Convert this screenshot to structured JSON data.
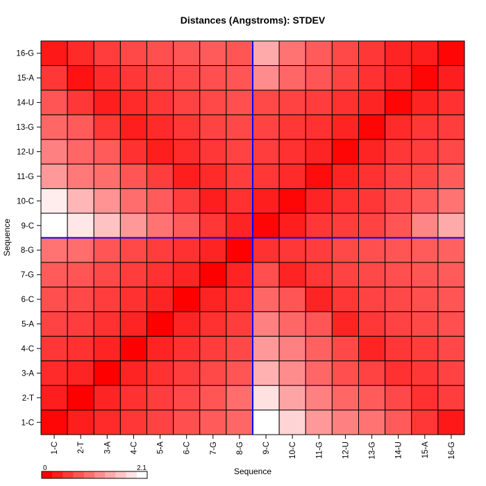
{
  "chart_data": {
    "type": "heatmap",
    "title": "Distances (Angstroms):  STDEV",
    "xlabel": "Sequence",
    "ylabel": "Sequence",
    "x_categories": [
      "1-C",
      "2-T",
      "3-A",
      "4-C",
      "5-A",
      "6-C",
      "7-G",
      "8-G",
      "9-C",
      "10-C",
      "11-G",
      "12-U",
      "13-G",
      "14-U",
      "15-A",
      "16-G"
    ],
    "y_categories": [
      "1-C",
      "2-T",
      "3-A",
      "4-C",
      "5-A",
      "6-C",
      "7-G",
      "8-G",
      "9-C",
      "10-C",
      "11-G",
      "12-U",
      "13-G",
      "14-U",
      "15-A",
      "16-G"
    ],
    "value_range": [
      0,
      2.1
    ],
    "legend": {
      "min_label": "0",
      "max_label": "2.1",
      "placement": "bottom-left"
    },
    "color_scale": {
      "low": "#ff0000",
      "high": "#ffffff"
    },
    "divider": {
      "after_x_category": "8-G",
      "after_y_category": "8-G",
      "color": "#0000ff"
    },
    "rows_bottom_to_top": [
      [
        0.05,
        0.25,
        0.35,
        0.45,
        0.55,
        0.65,
        0.75,
        0.85,
        2.1,
        1.75,
        1.25,
        1.05,
        0.95,
        0.75,
        0.45,
        0.2
      ],
      [
        0.25,
        0.0,
        0.3,
        0.4,
        0.5,
        0.6,
        0.7,
        0.9,
        1.85,
        1.35,
        1.05,
        0.85,
        0.75,
        0.6,
        0.4,
        0.5
      ],
      [
        0.35,
        0.3,
        0.0,
        0.3,
        0.4,
        0.5,
        0.6,
        0.7,
        1.45,
        1.15,
        0.85,
        0.65,
        0.55,
        0.4,
        0.45,
        0.55
      ],
      [
        0.45,
        0.4,
        0.3,
        0.0,
        0.3,
        0.4,
        0.5,
        0.6,
        1.25,
        1.05,
        0.8,
        0.6,
        0.3,
        0.45,
        0.5,
        0.6
      ],
      [
        0.55,
        0.5,
        0.4,
        0.3,
        0.0,
        0.3,
        0.4,
        0.5,
        1.05,
        0.85,
        0.7,
        0.3,
        0.45,
        0.55,
        0.6,
        0.65
      ],
      [
        0.65,
        0.6,
        0.5,
        0.4,
        0.3,
        0.0,
        0.3,
        0.4,
        0.85,
        0.7,
        0.3,
        0.45,
        0.55,
        0.6,
        0.65,
        0.7
      ],
      [
        0.75,
        0.7,
        0.6,
        0.5,
        0.4,
        0.3,
        0.0,
        0.3,
        0.65,
        0.3,
        0.45,
        0.55,
        0.6,
        0.65,
        0.7,
        0.75
      ],
      [
        0.95,
        0.9,
        0.7,
        0.6,
        0.5,
        0.4,
        0.3,
        0.0,
        0.4,
        0.45,
        0.5,
        0.6,
        0.65,
        0.7,
        0.75,
        0.8
      ],
      [
        2.1,
        1.9,
        1.6,
        1.25,
        0.95,
        0.75,
        0.45,
        0.3,
        0.05,
        0.25,
        0.45,
        0.5,
        0.55,
        0.7,
        1.1,
        1.4
      ],
      [
        1.95,
        1.5,
        1.2,
        0.9,
        0.75,
        0.5,
        0.25,
        0.4,
        0.25,
        0.05,
        0.3,
        0.4,
        0.45,
        0.6,
        0.75,
        0.95
      ],
      [
        1.25,
        1.0,
        0.9,
        0.7,
        0.5,
        0.25,
        0.35,
        0.5,
        0.45,
        0.35,
        0.1,
        0.3,
        0.4,
        0.55,
        0.6,
        0.75
      ],
      [
        1.05,
        0.85,
        0.75,
        0.4,
        0.25,
        0.35,
        0.45,
        0.55,
        0.5,
        0.4,
        0.3,
        0.05,
        0.3,
        0.45,
        0.5,
        0.6
      ],
      [
        0.85,
        0.75,
        0.45,
        0.25,
        0.35,
        0.45,
        0.55,
        0.6,
        0.55,
        0.45,
        0.4,
        0.3,
        0.05,
        0.35,
        0.45,
        0.5
      ],
      [
        0.7,
        0.45,
        0.25,
        0.35,
        0.45,
        0.55,
        0.6,
        0.65,
        0.6,
        0.55,
        0.5,
        0.4,
        0.3,
        0.05,
        0.3,
        0.4
      ],
      [
        0.45,
        0.15,
        0.35,
        0.45,
        0.55,
        0.6,
        0.65,
        0.7,
        1.15,
        0.85,
        0.7,
        0.55,
        0.4,
        0.3,
        0.05,
        0.25
      ],
      [
        0.2,
        0.35,
        0.5,
        0.6,
        0.65,
        0.7,
        0.75,
        0.7,
        1.4,
        0.95,
        0.75,
        0.6,
        0.45,
        0.3,
        0.25,
        0.05
      ]
    ]
  }
}
